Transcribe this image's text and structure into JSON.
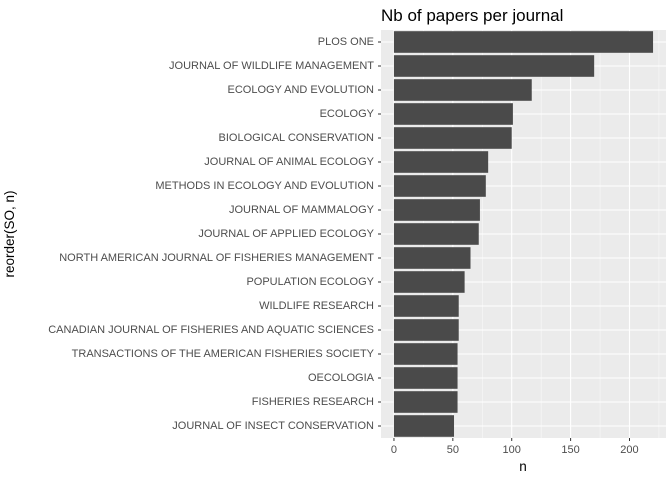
{
  "chart_data": {
    "type": "bar",
    "orientation": "horizontal",
    "title": "Nb of papers per journal",
    "xlabel": "n",
    "ylabel": "reorder(SO, n)",
    "categories": [
      "PLOS ONE",
      "JOURNAL OF WILDLIFE MANAGEMENT",
      "ECOLOGY AND EVOLUTION",
      "ECOLOGY",
      "BIOLOGICAL CONSERVATION",
      "JOURNAL OF ANIMAL ECOLOGY",
      "METHODS IN ECOLOGY AND EVOLUTION",
      "JOURNAL OF MAMMALOGY",
      "JOURNAL OF APPLIED ECOLOGY",
      "NORTH AMERICAN JOURNAL OF FISHERIES MANAGEMENT",
      "POPULATION ECOLOGY",
      "WILDLIFE RESEARCH",
      "CANADIAN JOURNAL OF FISHERIES AND AQUATIC SCIENCES",
      "TRANSACTIONS OF THE AMERICAN FISHERIES SOCIETY",
      "OECOLOGIA",
      "FISHERIES RESEARCH",
      "JOURNAL OF INSECT CONSERVATION"
    ],
    "values": [
      220,
      170,
      117,
      101,
      100,
      80,
      78,
      73,
      72,
      65,
      60,
      55,
      55,
      54,
      54,
      54,
      51
    ],
    "xlim": [
      -11,
      231
    ],
    "xticks": [
      0,
      50,
      100,
      150,
      200
    ],
    "xtick_labels": [
      "0",
      "50",
      "100",
      "150",
      "200"
    ],
    "grid": true,
    "colors": {
      "bar": "#4a4a4a",
      "panel": "#ebebeb",
      "grid_major": "#ffffff",
      "tick_text": "#4d4d4d",
      "tick_mark": "#333333"
    }
  }
}
